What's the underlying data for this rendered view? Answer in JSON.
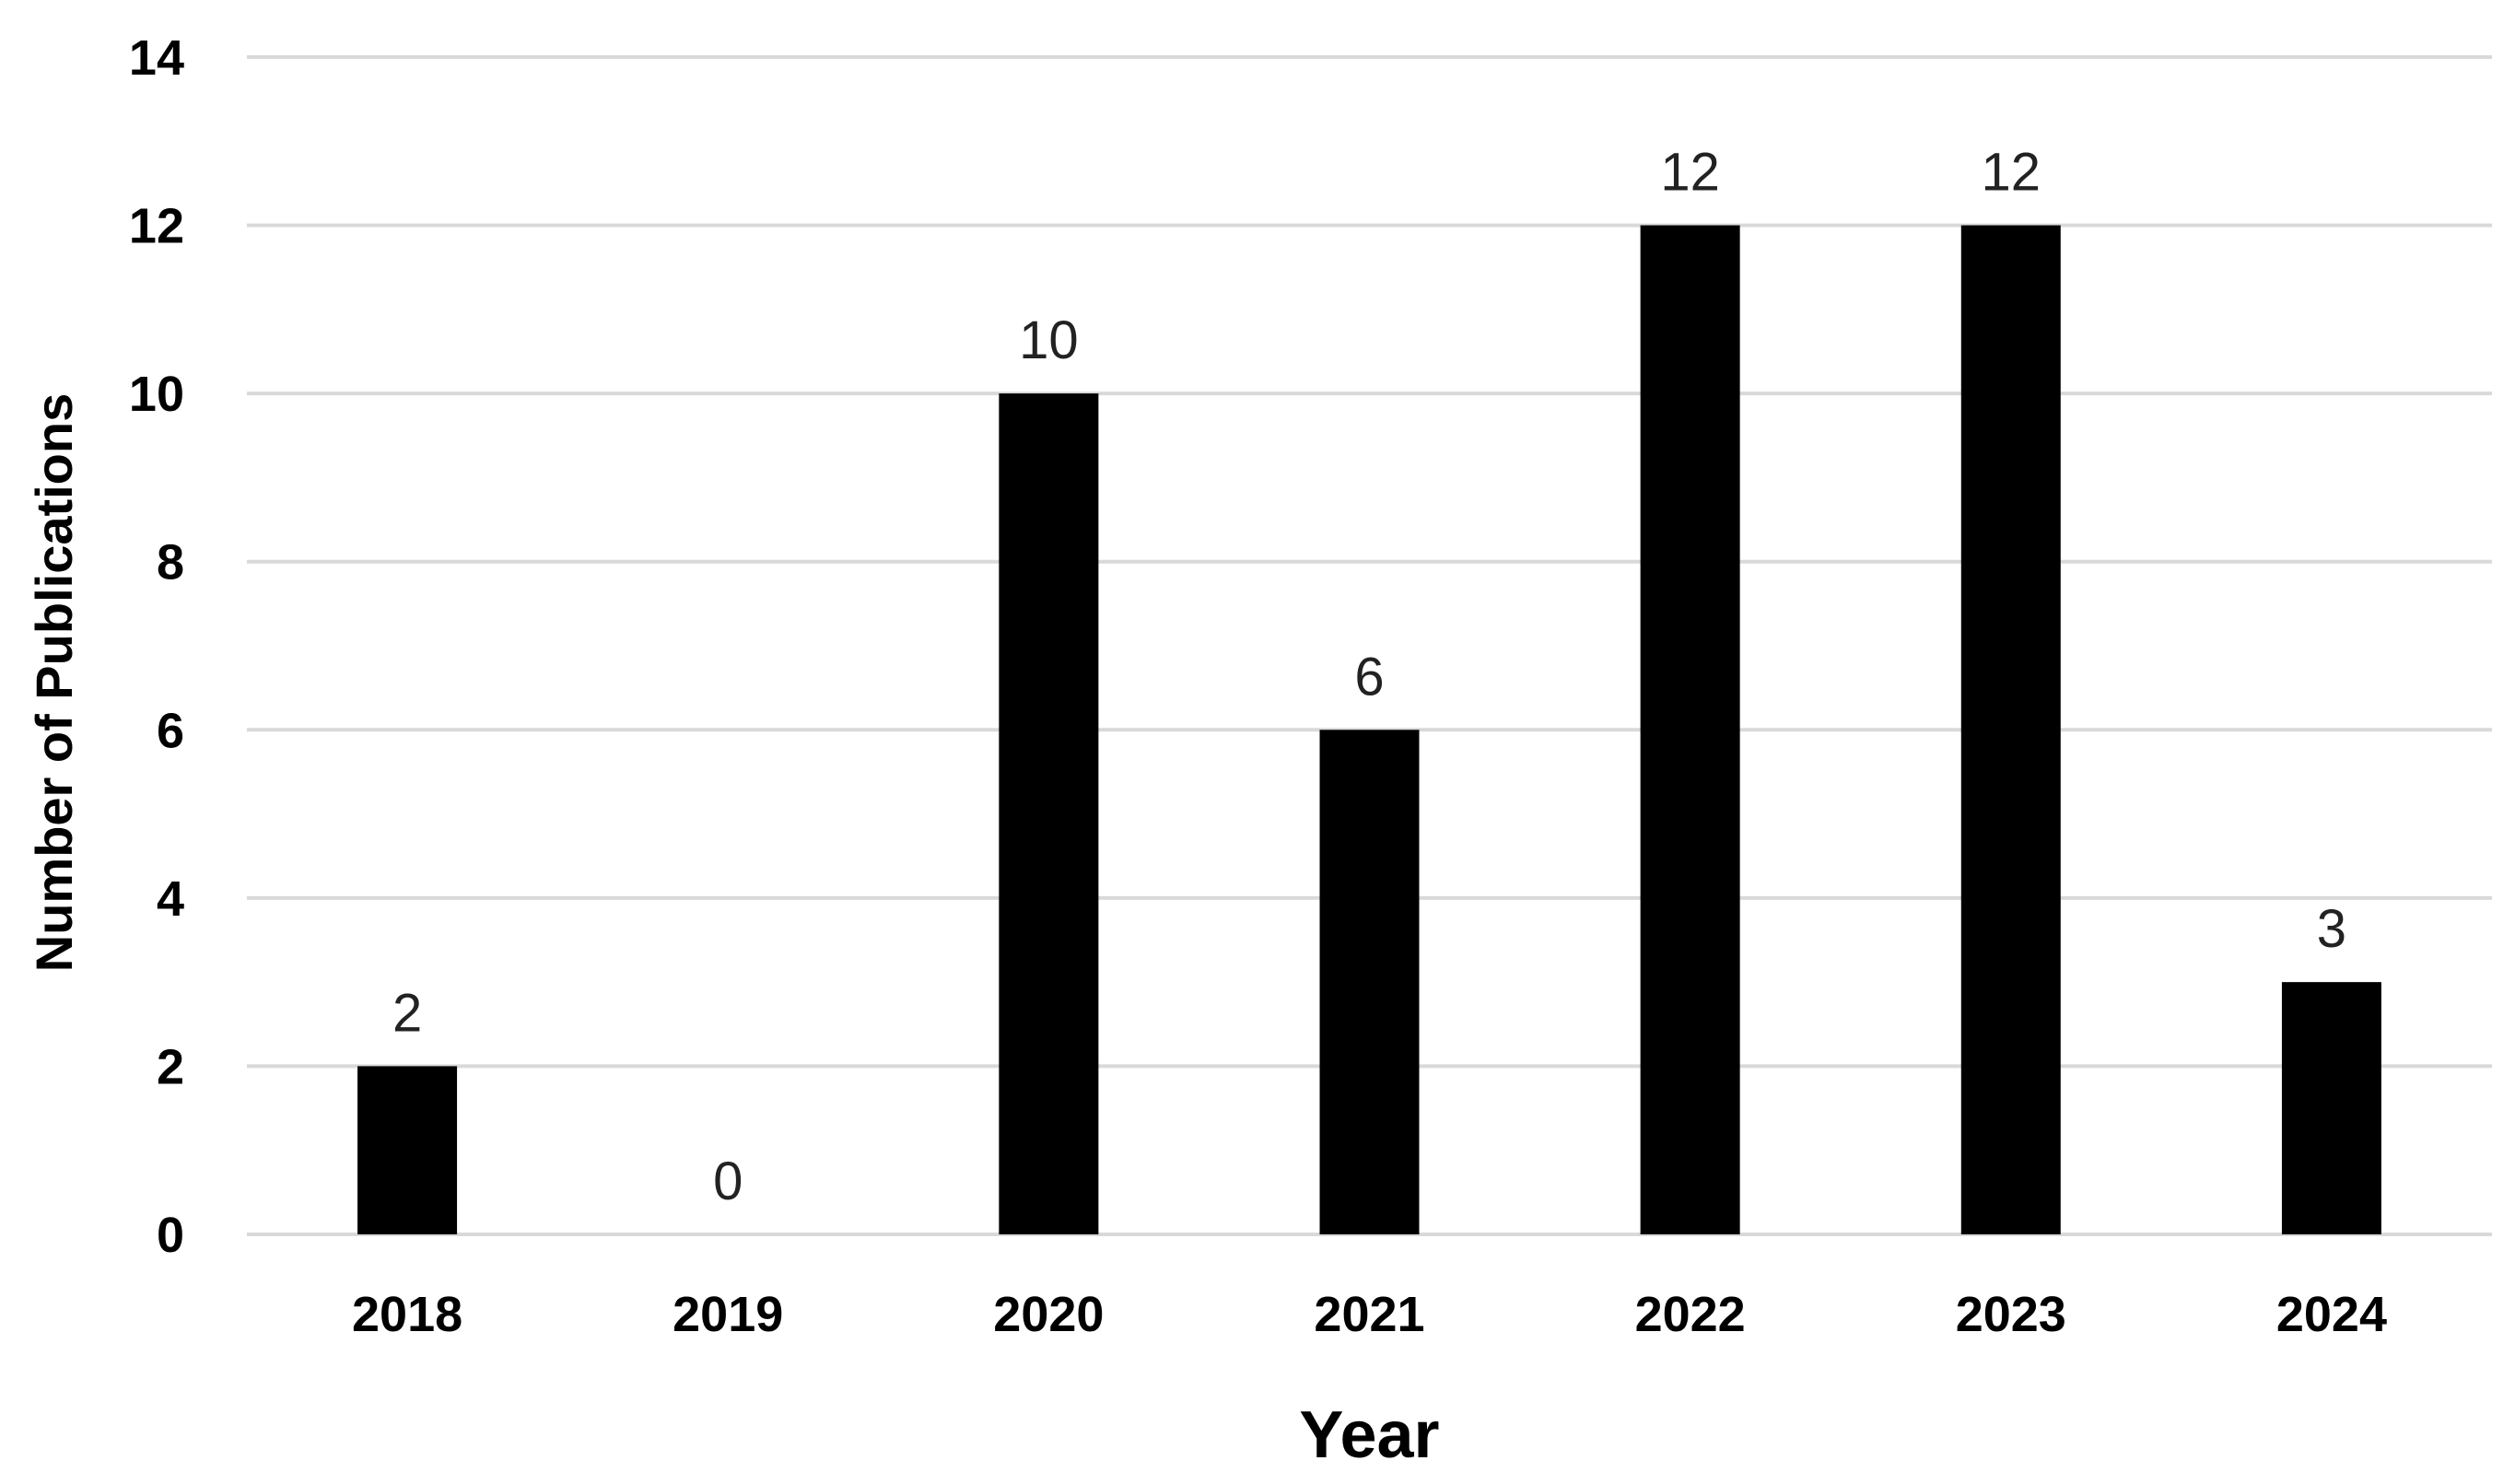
{
  "chart_data": {
    "type": "bar",
    "categories": [
      "2018",
      "2019",
      "2020",
      "2021",
      "2022",
      "2023",
      "2024"
    ],
    "values": [
      2,
      0,
      10,
      6,
      12,
      12,
      3
    ],
    "data_labels": [
      "2",
      "0",
      "10",
      "6",
      "12",
      "12",
      "3"
    ],
    "title": "",
    "xlabel": "Year",
    "ylabel": "Number of Publications",
    "ylim": [
      0,
      14
    ],
    "yticks": [
      "0",
      "2",
      "4",
      "6",
      "8",
      "10",
      "12",
      "14"
    ],
    "grid": true,
    "legend": "none",
    "bar_color": "#000000",
    "grid_color": "#d9d9d9"
  }
}
